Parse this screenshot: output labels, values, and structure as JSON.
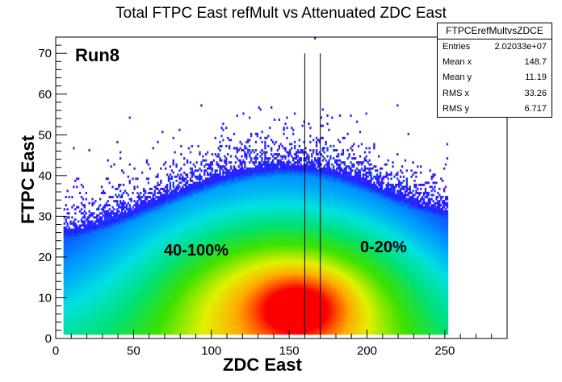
{
  "chart_data": {
    "type": "heatmap",
    "title": "Total FTPC East refMult vs Attenuated  ZDC East",
    "xlabel": "ZDC East",
    "ylabel": "FTPC East",
    "xlim": [
      0,
      290
    ],
    "ylim": [
      0,
      74
    ],
    "x_ticks": [
      "0",
      "50",
      "100",
      "150",
      "200",
      "250"
    ],
    "y_ticks": [
      "0",
      "10",
      "20",
      "30",
      "40",
      "50",
      "60",
      "70"
    ],
    "x_tick_values": [
      0,
      50,
      100,
      150,
      200,
      250
    ],
    "y_tick_values": [
      0,
      10,
      20,
      30,
      40,
      50,
      60,
      70
    ],
    "z_scale": "log",
    "colormap": "rainbow",
    "density_model": {
      "x_range": [
        5,
        252
      ],
      "y_range": [
        1,
        74
      ],
      "peak_x": 150,
      "ridge_peak_y": 42,
      "ridge_left_y": 26,
      "ridge_right_y": 31
    },
    "cut_lines_x": [
      160,
      170
    ],
    "grid": false,
    "annotations": [
      {
        "text": "Run8",
        "x": 6,
        "y": 69
      },
      {
        "text": "40-100%",
        "x": 68,
        "y": 20
      },
      {
        "text": "0-20%",
        "x": 193,
        "y": 21
      }
    ],
    "stats_box": {
      "title": "FTPCErefMultvsZDCE",
      "rows": [
        {
          "label": "Entries",
          "value": "2.02033e+07"
        },
        {
          "label": "Mean x",
          "value": "148.7"
        },
        {
          "label": "Mean y",
          "value": "11.19"
        },
        {
          "label": "RMS x",
          "value": "33.26"
        },
        {
          "label": "RMS y",
          "value": "6.717"
        }
      ]
    }
  }
}
